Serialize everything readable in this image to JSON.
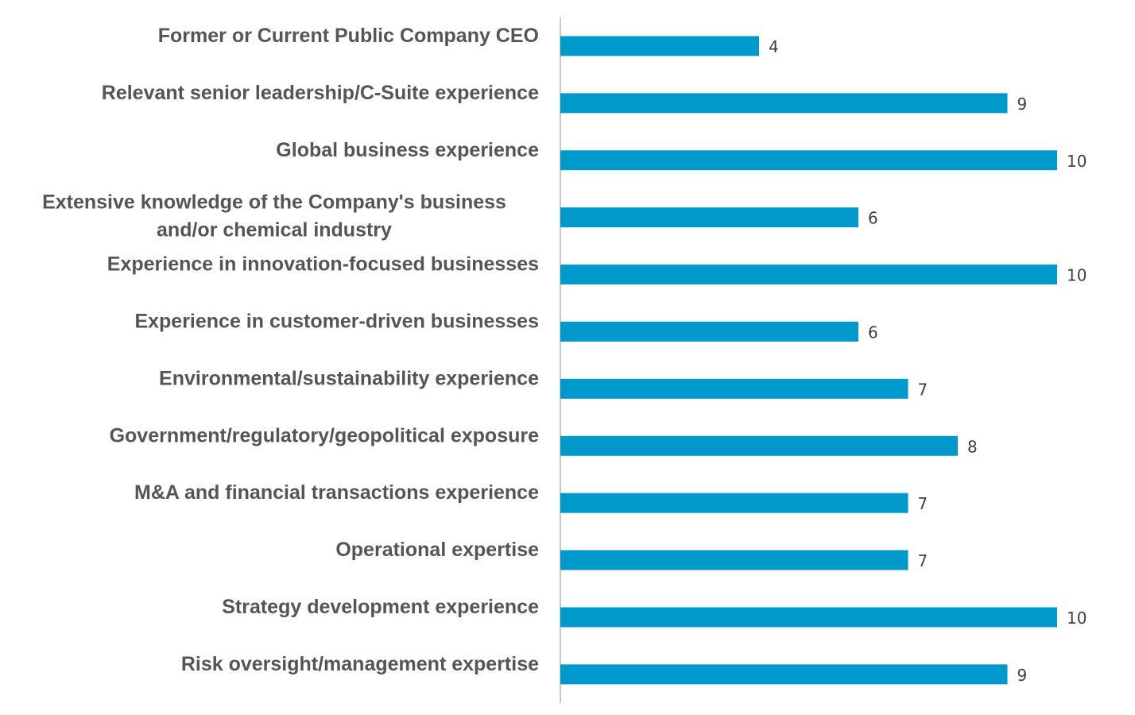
{
  "chart_data": {
    "type": "bar",
    "orientation": "horizontal",
    "title": "",
    "xlabel": "",
    "ylabel": "",
    "xlim": [
      0,
      10
    ],
    "grid": false,
    "legend": "none",
    "bar_color": "#0099CC",
    "categories": [
      [
        "Former or Current Public Company CEO"
      ],
      [
        "Relevant senior leadership/C-Suite experience"
      ],
      [
        "Global business experience"
      ],
      [
        "Extensive knowledge of the Company's business",
        "and/or chemical industry"
      ],
      [
        "Experience in innovation-focused businesses"
      ],
      [
        "Experience in customer-driven businesses"
      ],
      [
        "Environmental/sustainability experience"
      ],
      [
        "Government/regulatory/geopolitical exposure"
      ],
      [
        "M&A and financial transactions experience"
      ],
      [
        "Operational expertise"
      ],
      [
        "Strategy development experience"
      ],
      [
        "Risk oversight/management expertise"
      ]
    ],
    "values": [
      4,
      9,
      10,
      6,
      10,
      6,
      7,
      8,
      7,
      7,
      10,
      9
    ]
  }
}
